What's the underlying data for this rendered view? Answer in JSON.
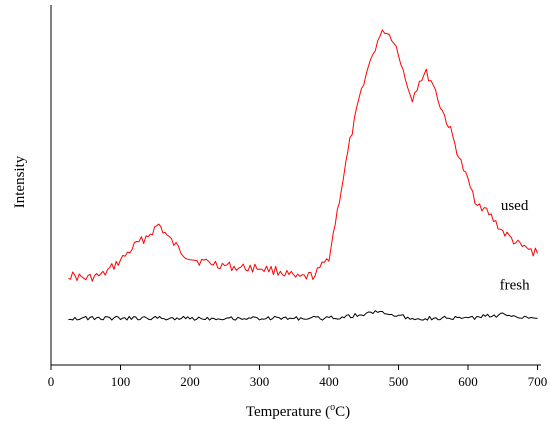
{
  "chart_data": {
    "type": "line",
    "xlabel": "Temperature (°C)",
    "xlabel_main": "Temperature (",
    "xlabel_sup": "o",
    "xlabel_unit": "C)",
    "ylabel": "Intensity",
    "xlim": [
      0,
      705
    ],
    "ylim": [
      0,
      1
    ],
    "xticks": [
      0,
      100,
      200,
      300,
      400,
      500,
      600,
      700
    ],
    "yticks_shown": false,
    "grid": false,
    "legend": "none",
    "series": [
      {
        "name": "used",
        "color": "#ff0000",
        "x": [
          25,
          50,
          75,
          100,
          120,
          140,
          155,
          170,
          190,
          210,
          240,
          270,
          300,
          330,
          355,
          380,
          400,
          415,
          430,
          450,
          470,
          480,
          490,
          500,
          510,
          520,
          530,
          540,
          550,
          560,
          575,
          590,
          610,
          630,
          650,
          675,
          700
        ],
        "y": [
          0.25,
          0.24,
          0.25,
          0.29,
          0.33,
          0.36,
          0.39,
          0.35,
          0.31,
          0.29,
          0.28,
          0.27,
          0.27,
          0.26,
          0.24,
          0.25,
          0.3,
          0.46,
          0.62,
          0.79,
          0.9,
          0.93,
          0.91,
          0.87,
          0.79,
          0.74,
          0.79,
          0.81,
          0.78,
          0.72,
          0.65,
          0.56,
          0.46,
          0.42,
          0.37,
          0.33,
          0.31
        ]
      },
      {
        "name": "fresh",
        "color": "#000000",
        "x": [
          25,
          100,
          200,
          300,
          400,
          450,
          470,
          490,
          520,
          560,
          600,
          650,
          700
        ],
        "y": [
          0.13,
          0.13,
          0.13,
          0.13,
          0.13,
          0.14,
          0.15,
          0.14,
          0.13,
          0.13,
          0.13,
          0.14,
          0.13
        ]
      }
    ],
    "annotations": [
      {
        "text": "used",
        "series": "used",
        "at_x": 667,
        "at_y": 0.43
      },
      {
        "text": "fresh",
        "series": "fresh",
        "at_x": 667,
        "at_y": 0.21
      }
    ]
  }
}
